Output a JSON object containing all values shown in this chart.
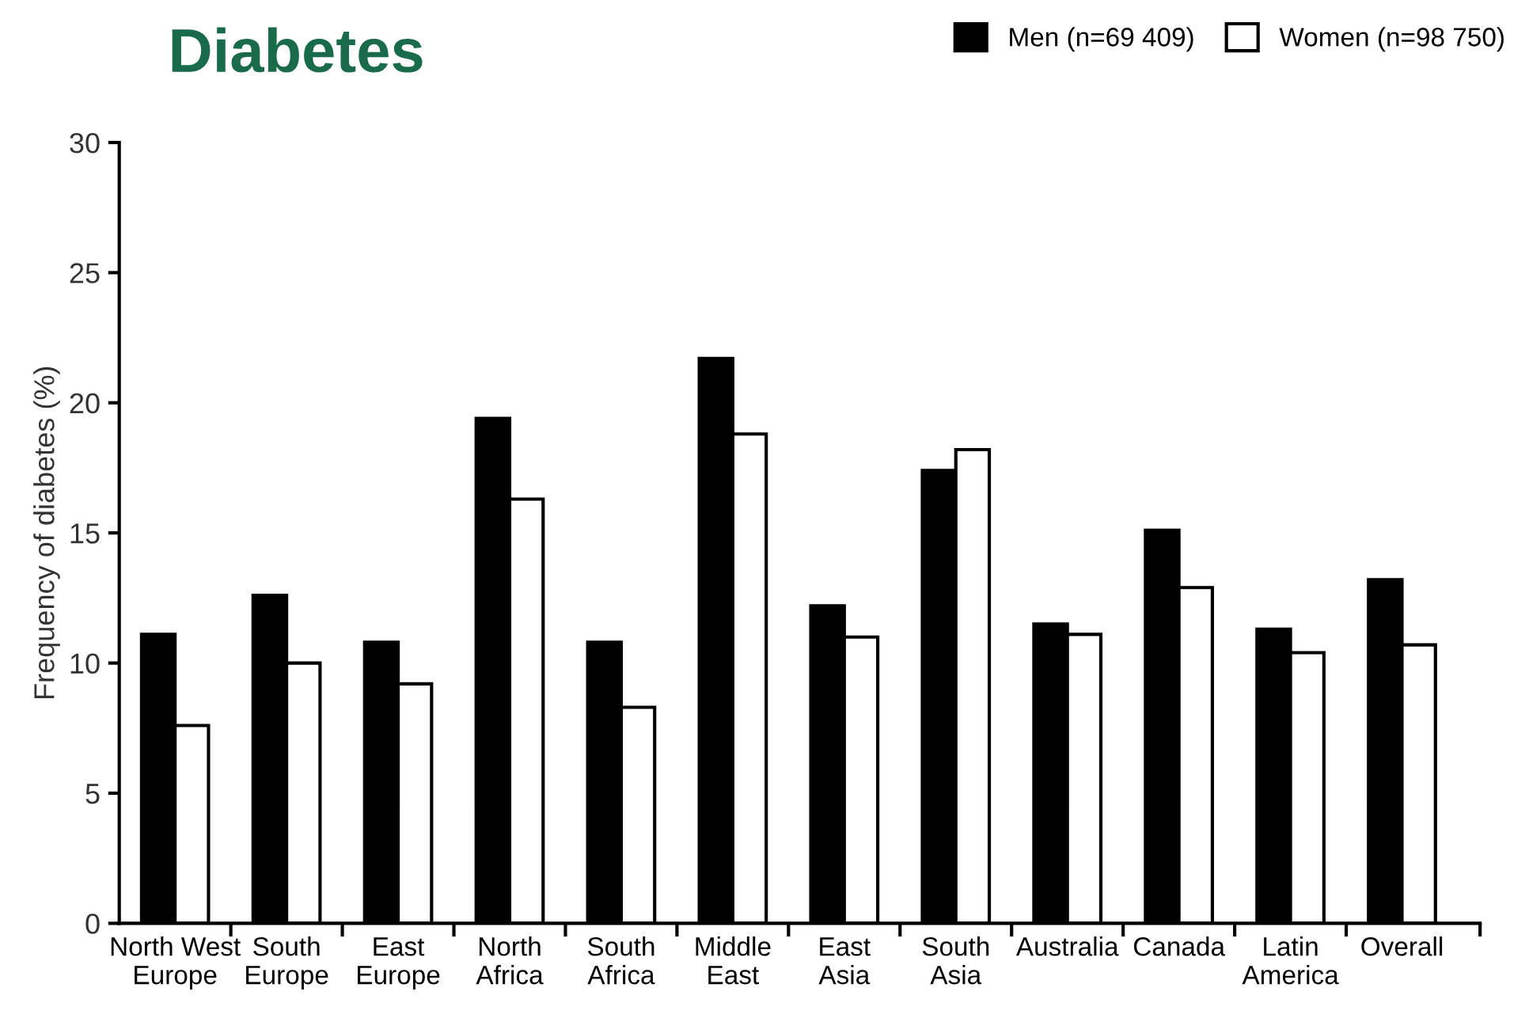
{
  "chart_data": {
    "type": "bar",
    "title": "Diabetes",
    "ylabel": "Frequency of diabetes (%)",
    "categories": [
      "North West\nEurope",
      "South\nEurope",
      "East\nEurope",
      "North\nAfrica",
      "South\nAfrica",
      "Middle\nEast",
      "East\nAsia",
      "South\nAsia",
      "Australia",
      "Canada",
      "Latin\nAmerica",
      "Overall"
    ],
    "series": [
      {
        "name": "Men (n=69 409)",
        "color": "#000000",
        "values": [
          11.1,
          12.6,
          10.8,
          19.4,
          10.8,
          21.7,
          12.2,
          17.4,
          11.5,
          15.1,
          11.3,
          13.2
        ]
      },
      {
        "name": "Women (n=98 750)",
        "color": "#ffffff",
        "values": [
          7.6,
          10.0,
          9.2,
          16.3,
          8.3,
          18.8,
          11.0,
          18.2,
          11.1,
          12.9,
          10.4,
          10.7
        ]
      }
    ],
    "ylim": [
      0,
      30
    ],
    "yticks": [
      0,
      5,
      10,
      15,
      20,
      25,
      30
    ],
    "grid": false,
    "legend": "top right"
  }
}
